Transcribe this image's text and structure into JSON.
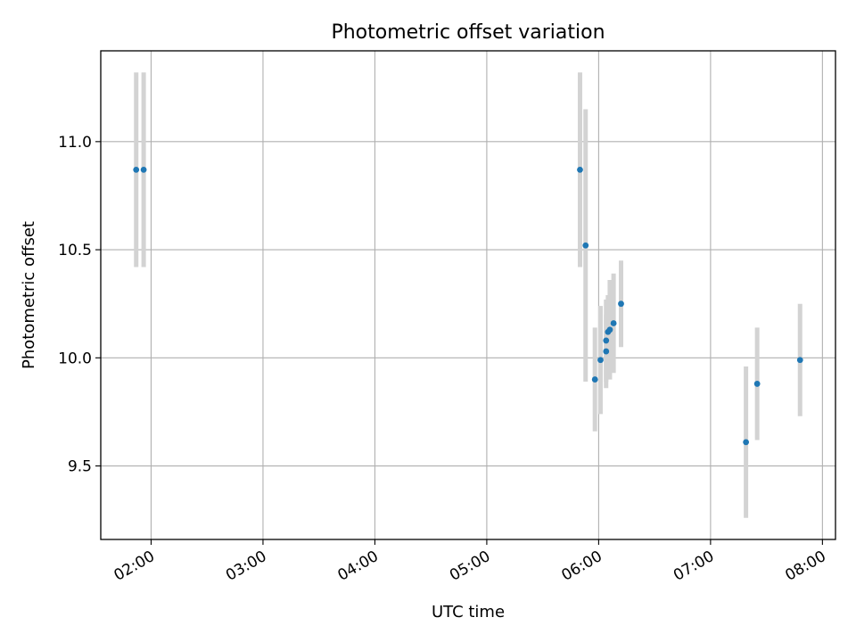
{
  "chart_data": {
    "type": "scatter",
    "title": "Photometric offset variation",
    "xlabel": "UTC time",
    "ylabel": "Photometric offset",
    "x_tick_labels": [
      "02:00",
      "03:00",
      "04:00",
      "05:00",
      "06:00",
      "07:00",
      "08:00"
    ],
    "y_tick_labels": [
      "9.5",
      "10.0",
      "10.5",
      "11.0"
    ],
    "x_ticks": [
      "02:00",
      "03:00",
      "04:00",
      "05:00",
      "06:00",
      "07:00",
      "08:00"
    ],
    "y_ticks": [
      9.5,
      10.0,
      10.5,
      11.0
    ],
    "xlim": [
      "01:33",
      "08:07"
    ],
    "ylim": [
      9.16,
      11.42
    ],
    "grid": true,
    "point_color": "#1f77b4",
    "errorbar_color": "#d3d3d3",
    "points": [
      {
        "x": "01:52",
        "y": 10.87,
        "err": 0.45
      },
      {
        "x": "01:56",
        "y": 10.87,
        "err": 0.45
      },
      {
        "x": "05:50",
        "y": 10.87,
        "err": 0.45
      },
      {
        "x": "05:53",
        "y": 10.52,
        "err": 0.63
      },
      {
        "x": "05:58",
        "y": 9.9,
        "err": 0.24
      },
      {
        "x": "06:01",
        "y": 9.99,
        "err": 0.25
      },
      {
        "x": "06:04",
        "y": 10.08,
        "err": 0.19
      },
      {
        "x": "06:04",
        "y": 10.03,
        "err": 0.17
      },
      {
        "x": "06:05",
        "y": 10.12,
        "err": 0.17
      },
      {
        "x": "06:06",
        "y": 10.13,
        "err": 0.23
      },
      {
        "x": "06:08",
        "y": 10.16,
        "err": 0.23
      },
      {
        "x": "06:12",
        "y": 10.25,
        "err": 0.2
      },
      {
        "x": "07:19",
        "y": 9.61,
        "err": 0.35
      },
      {
        "x": "07:25",
        "y": 9.88,
        "err": 0.26
      },
      {
        "x": "07:48",
        "y": 9.99,
        "err": 0.26
      }
    ]
  }
}
